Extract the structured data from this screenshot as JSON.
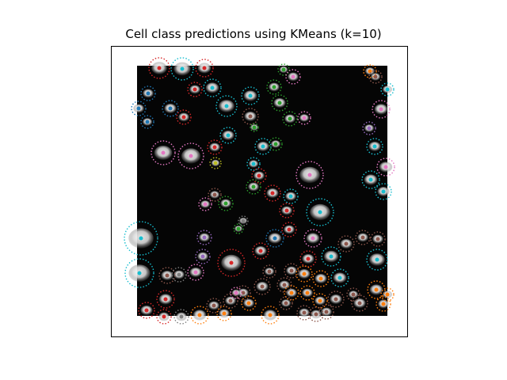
{
  "title": "Cell class predictions using KMeans (k=10)",
  "classes": {
    "blue": "#1f77b4",
    "orange": "#ff7f0e",
    "green": "#2ca02c",
    "red": "#d62728",
    "purple": "#9467bd",
    "brown": "#8c564b",
    "pink": "#e377c2",
    "gray": "#7f7f7f",
    "olive": "#bcbd22",
    "cyan": "#17becf"
  }
}
